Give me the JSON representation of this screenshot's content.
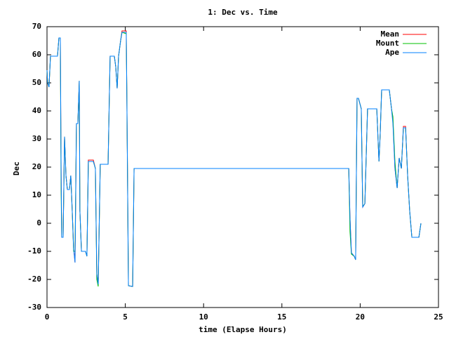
{
  "chart_data": {
    "type": "line",
    "title": "1: Dec vs. Time",
    "x_label": "time (Elapse Hours)",
    "y_label": "Dec",
    "x": [
      0,
      0.04,
      0.13,
      0.22,
      0.67,
      0.76,
      0.85,
      0.9,
      0.94,
      1.03,
      1.12,
      1.21,
      1.3,
      1.43,
      1.52,
      1.61,
      1.7,
      1.79,
      1.88,
      1.97,
      2.06,
      2.1,
      2.2,
      2.46,
      2.55,
      2.64,
      2.96,
      3.09,
      3.18,
      3.27,
      3.4,
      3.9,
      4.03,
      4.3,
      4.39,
      4.48,
      4.57,
      4.7,
      4.79,
      5.06,
      5.1,
      5.2,
      5.47,
      5.56,
      19.27,
      19.35,
      19.44,
      19.62,
      19.71,
      19.8,
      19.89,
      20.07,
      20.16,
      20.3,
      20.47,
      21.06,
      21.2,
      21.28,
      21.37,
      21.86,
      22,
      22.09,
      22.22,
      22.36,
      22.49,
      22.63,
      22.76,
      22.9,
      23.03,
      23.16,
      23.3,
      23.75,
      23.88
    ],
    "series": [
      {
        "name": "Mean",
        "color": "#ff0000",
        "values": [
          54.5,
          50,
          48.5,
          59.5,
          59.5,
          66,
          66,
          19.5,
          -5,
          -5,
          30.8,
          17,
          12,
          12,
          17,
          4.5,
          -9,
          -14,
          35.5,
          35.5,
          50.7,
          4.5,
          -10,
          -10,
          -11.75,
          22.5,
          22.5,
          19.5,
          -18,
          -21.75,
          21,
          21,
          59.5,
          59.5,
          55.7,
          48,
          59.5,
          65,
          68.5,
          68.5,
          44.5,
          -22.25,
          -22.5,
          19.5,
          19.5,
          2,
          -10.5,
          -11.75,
          -13,
          44.5,
          44.5,
          40.75,
          5.75,
          7,
          40.75,
          40.75,
          22,
          32,
          47.5,
          47.5,
          40.75,
          36.5,
          19.5,
          12.5,
          23.25,
          19.5,
          34.5,
          34.5,
          17,
          4.5,
          -5,
          -5,
          0
        ]
      },
      {
        "name": "Mount",
        "color": "#00c000",
        "values": [
          54.5,
          50,
          48.5,
          59.5,
          59.5,
          66,
          66,
          12,
          -5,
          -5,
          30.8,
          17,
          12,
          12,
          17,
          4.5,
          -10,
          -10,
          35.5,
          35.5,
          50.7,
          4.5,
          -10,
          -10,
          -11.75,
          22,
          22,
          19.5,
          -20,
          -22.5,
          21,
          21,
          59.5,
          59.5,
          55.7,
          48,
          59.5,
          65,
          68,
          67.5,
          44.5,
          -22.25,
          -22.5,
          19.5,
          19.5,
          -3,
          -11,
          -11.75,
          -13,
          44.5,
          44.5,
          40.75,
          6,
          7,
          40.75,
          40.75,
          22,
          32,
          47.5,
          47.5,
          40.75,
          38,
          22,
          12.5,
          23.25,
          19.5,
          34,
          34,
          17,
          4.5,
          -5,
          -5,
          0
        ]
      },
      {
        "name": "Ape",
        "color": "#0080ff",
        "values": [
          54.5,
          50,
          48.5,
          59.5,
          59.5,
          66,
          66,
          19.5,
          -5,
          -5,
          30.8,
          17,
          12,
          12,
          17,
          4.5,
          -9,
          -14,
          35.5,
          35.5,
          50.7,
          4.5,
          -10,
          -10,
          -11.75,
          22,
          22,
          19.5,
          -18,
          -21.75,
          21,
          21,
          59.5,
          59.5,
          55.7,
          48,
          59.5,
          65,
          68,
          68,
          44.5,
          -22.25,
          -22.5,
          19.5,
          19.5,
          2,
          -10.5,
          -11.75,
          -13,
          44.5,
          44.5,
          40.75,
          5.75,
          7,
          40.75,
          40.75,
          22,
          32,
          47.5,
          47.5,
          40.75,
          35.5,
          19.5,
          12.5,
          23.25,
          19.5,
          34,
          34,
          17,
          4.5,
          -5,
          -5,
          0
        ]
      }
    ],
    "xlim": [
      0,
      25
    ],
    "xticks": [
      0,
      5,
      10,
      15,
      20,
      25
    ],
    "ylim": [
      -30,
      70
    ],
    "yticks": [
      -30,
      -20,
      -10,
      0,
      10,
      20,
      30,
      40,
      50,
      60,
      70
    ],
    "grid": false,
    "legend": "top-right"
  }
}
